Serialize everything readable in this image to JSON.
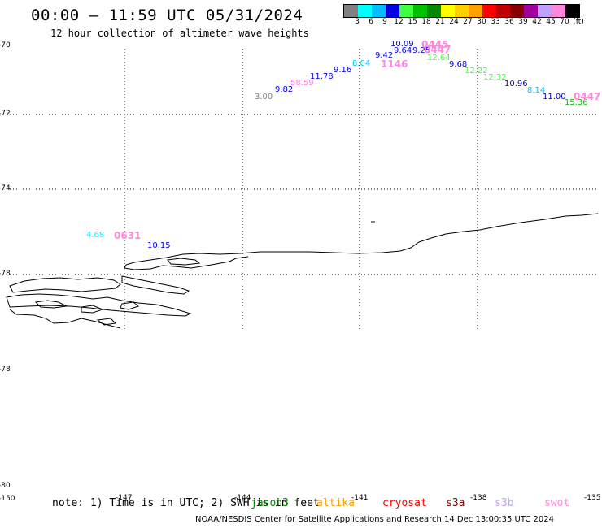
{
  "header": {
    "title": "00:00 – 11:59 UTC 05/31/2024",
    "subtitle": "12 hour collection of altimeter wave heights"
  },
  "color_scale": {
    "colors": [
      "#808080",
      "#00ffff",
      "#00bfff",
      "#0000e0",
      "#40ff40",
      "#00c000",
      "#008800",
      "#ffff00",
      "#ffd000",
      "#ffa000",
      "#ff0000",
      "#c00000",
      "#880000",
      "#a000a0",
      "#c0a0ff",
      "#ff88dd",
      "#000000"
    ],
    "labels": [
      "3",
      "6",
      "9",
      "12",
      "15",
      "18",
      "21",
      "24",
      "27",
      "30",
      "33",
      "36",
      "39",
      "42",
      "45",
      "70",
      "(ft)"
    ]
  },
  "axes": {
    "y_labels": [
      "-70",
      "-72",
      "-74",
      "-78",
      "-78",
      "-80",
      "-150"
    ],
    "x_labels": [
      "-147",
      "-144",
      "-141",
      "-138",
      "-135"
    ]
  },
  "observations": [
    {
      "text": "3.00",
      "color": "#808080"
    },
    {
      "text": "9.82",
      "color": "#0000e0"
    },
    {
      "text": "58.59",
      "color": "#ff88dd"
    },
    {
      "text": "11.78",
      "color": "#0000e0"
    },
    {
      "text": "9.16",
      "color": "#0000e0"
    },
    {
      "text": "8.04",
      "color": "#00bfff"
    },
    {
      "text": "9.42",
      "color": "#0000e0"
    },
    {
      "text": "10.09",
      "color": "#0000e0"
    },
    {
      "text": "9.64",
      "color": "#0000e0"
    },
    {
      "text": "9.25",
      "color": "#0000e0"
    },
    {
      "text": "12.64",
      "color": "#40ff40"
    },
    {
      "text": "9.68",
      "color": "#0000e0"
    },
    {
      "text": "12.22",
      "color": "#40ff40"
    },
    {
      "text": "12.32",
      "color": "#40ff40"
    },
    {
      "text": "10.96",
      "color": "#0000e0"
    },
    {
      "text": "8.14",
      "color": "#00bfff"
    },
    {
      "text": "11.00",
      "color": "#0000e0"
    },
    {
      "text": "15.36",
      "color": "#00c000"
    },
    {
      "text": "4.68",
      "color": "#00ffff"
    },
    {
      "text": "10.15",
      "color": "#0000e0"
    }
  ],
  "pass_times": [
    {
      "text": "0445",
      "color": "#ff88dd"
    },
    {
      "text": "0447",
      "color": "#ff88dd"
    },
    {
      "text": "1146",
      "color": "#ff88dd"
    },
    {
      "text": "0447",
      "color": "#ff88dd"
    },
    {
      "text": "0631",
      "color": "#ff88dd"
    }
  ],
  "footer": {
    "note": "note: 1) Time is in UTC; 2) SWH is in feet",
    "satellites": [
      {
        "name": "jason3",
        "color": "#008800"
      },
      {
        "name": "altika",
        "color": "#ffa000"
      },
      {
        "name": "cryosat",
        "color": "#ff0000"
      },
      {
        "name": "s3a",
        "color": "#880000"
      },
      {
        "name": "s3b",
        "color": "#c0a0ff"
      },
      {
        "name": "swot",
        "color": "#ff88dd"
      }
    ],
    "credit": "NOAA/NESDIS Center for Satellite Applications and Research    14 Dec 13:00:35 UTC 2024"
  }
}
